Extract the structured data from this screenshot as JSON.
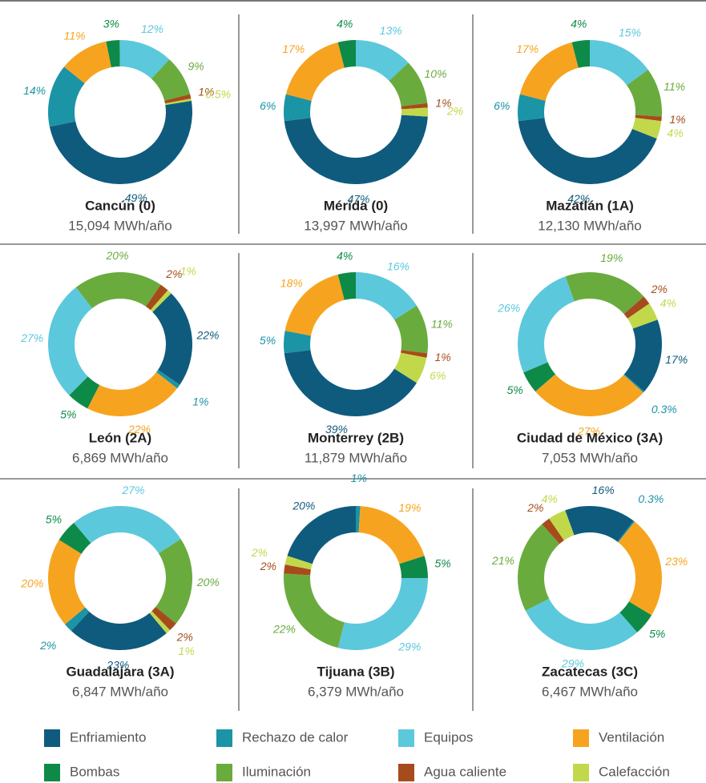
{
  "legend": [
    {
      "name": "Enfriamiento",
      "color": "#0f5b7e"
    },
    {
      "name": "Rechazo de calor",
      "color": "#1b94a6"
    },
    {
      "name": "Equipos",
      "color": "#5cc8dc"
    },
    {
      "name": "Ventilación",
      "color": "#f6a41f"
    },
    {
      "name": "Bombas",
      "color": "#0e8a48"
    },
    {
      "name": "Iluminación",
      "color": "#6aab3e"
    },
    {
      "name": "Agua caliente",
      "color": "#a64c1c"
    },
    {
      "name": "Calefacción",
      "color": "#c2d84b"
    }
  ],
  "chart_data": [
    {
      "type": "pie",
      "donut": true,
      "title": "Cancún (0)",
      "subtitle": "15,094 MWh/año",
      "startangle": 81,
      "categories": [
        "Enfriamiento",
        "Rechazo de calor",
        "Ventilación",
        "Bombas",
        "Equipos",
        "Iluminación",
        "Agua caliente",
        "Calefacción"
      ],
      "values": [
        49,
        14,
        11,
        3,
        12,
        9,
        1,
        0.5
      ],
      "value_labels": [
        "49%",
        "14%",
        "11%",
        "3%",
        "12%",
        "9%",
        "1%",
        "0.5%"
      ]
    },
    {
      "type": "pie",
      "donut": true,
      "title": "Mérida (0)",
      "subtitle": "13,997 MWh/año",
      "startangle": 93.6,
      "categories": [
        "Enfriamiento",
        "Rechazo de calor",
        "Ventilación",
        "Bombas",
        "Equipos",
        "Iluminación",
        "Agua caliente",
        "Calefacción"
      ],
      "values": [
        47,
        6,
        17,
        4,
        13,
        10,
        1,
        2
      ],
      "value_labels": [
        "47%",
        "6%",
        "17%",
        "4%",
        "13%",
        "10%",
        "1%",
        "2%"
      ]
    },
    {
      "type": "pie",
      "donut": true,
      "title": "Mazatlán (1A)",
      "subtitle": "12,130 MWh/año",
      "startangle": 111.6,
      "categories": [
        "Enfriamiento",
        "Rechazo de calor",
        "Ventilación",
        "Bombas",
        "Equipos",
        "Iluminación",
        "Agua caliente",
        "Calefacción"
      ],
      "values": [
        42,
        6,
        17,
        4,
        15,
        11,
        1,
        4
      ],
      "value_labels": [
        "42%",
        "6%",
        "17%",
        "4%",
        "15%",
        "11%",
        "1%",
        "4%"
      ]
    },
    {
      "type": "pie",
      "donut": true,
      "title": "León (2A)",
      "subtitle": "6,869 MWh/año",
      "startangle": 45,
      "categories": [
        "Enfriamiento",
        "Rechazo de calor",
        "Ventilación",
        "Bombas",
        "Equipos",
        "Iluminación",
        "Agua caliente",
        "Calefacción"
      ],
      "values": [
        22,
        1,
        22,
        5,
        27,
        20,
        2,
        1
      ],
      "value_labels": [
        "22%",
        "1%",
        "22%",
        "5%",
        "27%",
        "20%",
        "2%",
        "1%"
      ]
    },
    {
      "type": "pie",
      "donut": true,
      "title": "Monterrey (2B)",
      "subtitle": "11,879 MWh/año",
      "startangle": 122.4,
      "categories": [
        "Enfriamiento",
        "Rechazo de calor",
        "Ventilación",
        "Bombas",
        "Equipos",
        "Iluminación",
        "Agua caliente",
        "Calefacción"
      ],
      "values": [
        39,
        5,
        18,
        4,
        16,
        11,
        1,
        6
      ],
      "value_labels": [
        "39%",
        "5%",
        "18%",
        "4%",
        "16%",
        "11%",
        "1%",
        "6%"
      ]
    },
    {
      "type": "pie",
      "donut": true,
      "title": "Ciudad de México (3A)",
      "subtitle": "7,053 MWh/año",
      "startangle": 70,
      "categories": [
        "Enfriamiento",
        "Rechazo de calor",
        "Ventilación",
        "Bombas",
        "Equipos",
        "Iluminación",
        "Agua caliente",
        "Calefacción"
      ],
      "values": [
        17,
        0.3,
        27,
        5,
        26,
        19,
        2,
        4
      ],
      "value_labels": [
        "17%",
        "0.3%",
        "27%",
        "5%",
        "26%",
        "19%",
        "2%",
        "4%"
      ]
    },
    {
      "type": "pie",
      "donut": true,
      "title": "Guadalajara (3A)",
      "subtitle": "6,847 MWh/año",
      "startangle": 140,
      "categories": [
        "Enfriamiento",
        "Rechazo de calor",
        "Ventilación",
        "Bombas",
        "Equipos",
        "Iluminación",
        "Agua caliente",
        "Calefacción"
      ],
      "values": [
        23,
        2,
        20,
        5,
        27,
        20,
        2,
        1
      ],
      "value_labels": [
        "23%",
        "2%",
        "20%",
        "5%",
        "27%",
        "20%",
        "2%",
        "1%"
      ]
    },
    {
      "type": "pie",
      "donut": true,
      "title": "Tijuana (3B)",
      "subtitle": "6,379 MWh/año",
      "startangle": 288,
      "categories": [
        "Enfriamiento",
        "Rechazo de calor",
        "Ventilación",
        "Bombas",
        "Equipos",
        "Iluminación",
        "Agua caliente",
        "Calefacción"
      ],
      "values": [
        20,
        1,
        19,
        5,
        29,
        22,
        2,
        2
      ],
      "value_labels": [
        "20%",
        "1%",
        "19%",
        "5%",
        "29%",
        "22%",
        "2%",
        "2%"
      ]
    },
    {
      "type": "pie",
      "donut": true,
      "title": "Zacatecas (3C)",
      "subtitle": "6,467 MWh/año",
      "startangle": 340,
      "categories": [
        "Enfriamiento",
        "Rechazo de calor",
        "Ventilación",
        "Bombas",
        "Equipos",
        "Iluminación",
        "Agua caliente",
        "Calefacción"
      ],
      "values": [
        16,
        0.3,
        23,
        5,
        29,
        21,
        2,
        4
      ],
      "value_labels": [
        "16%",
        "0.3%",
        "23%",
        "5%",
        "29%",
        "21%",
        "2%",
        "4%"
      ]
    }
  ]
}
